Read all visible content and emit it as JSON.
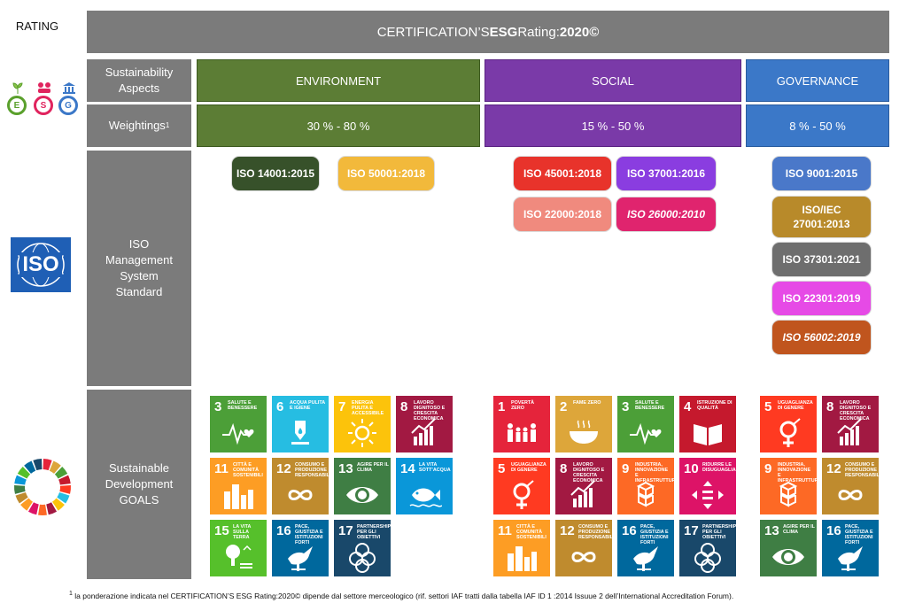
{
  "rating_label": "RATING",
  "title": {
    "prefix": "CERTIFICATION’S ",
    "bold1": "ESG",
    "middle": " Rating:",
    "bold2": "2020©"
  },
  "row_labels": {
    "aspects": [
      "Sustainability",
      "Aspects"
    ],
    "weightings": "Weightings",
    "weightings_sup": "1",
    "iso": [
      "ISO",
      "Management",
      "System",
      "Standard"
    ],
    "sdg": [
      "Sustainable",
      "Development",
      "GOALS"
    ]
  },
  "esg_icons": [
    "E",
    "S",
    "G"
  ],
  "iso_logo_text": "ISO",
  "columns": [
    {
      "name": "ENVIRONMENT",
      "weighting": "30 % - 80 %",
      "color": "#5c7d35"
    },
    {
      "name": "SOCIAL",
      "weighting": "15 %  - 50 %",
      "color": "#7a3aa8"
    },
    {
      "name": "GOVERNANCE",
      "weighting": "8 % - 50 %",
      "color": "#3b78c8"
    }
  ],
  "iso_standards": {
    "environment": [
      {
        "label": "ISO 14001:2015",
        "color": "#37512a"
      },
      {
        "label": "ISO 50001:2018",
        "color": "#f2b93b"
      }
    ],
    "social": [
      {
        "label": "ISO 45001:2018",
        "color": "#e8332b"
      },
      {
        "label": "ISO 37001:2016",
        "color": "#8a3de0"
      },
      {
        "label": "ISO 22000:2018",
        "color": "#f08a7e"
      },
      {
        "label": "ISO 26000:2010",
        "color": "#e0246e"
      }
    ],
    "governance": [
      {
        "label": "ISO 9001:2015",
        "color": "#4a78c9"
      },
      {
        "label": "ISO/IEC 27001:2013",
        "color": "#b88a2a"
      },
      {
        "label": "ISO 37301:2021",
        "color": "#6e6e6e"
      },
      {
        "label": "ISO 22301:2019",
        "color": "#e64ae6"
      },
      {
        "label": "ISO 56002:2019",
        "color": "#c0551e"
      }
    ]
  },
  "sdg_goals": {
    "environment": [
      {
        "num": "3",
        "label": "SALUTE E BENESSERE",
        "color": "#4c9f38",
        "icon": "heartbeat-icon"
      },
      {
        "num": "6",
        "label": "ACQUA PULITA E IGIENE",
        "color": "#26bde2",
        "icon": "water-drop-icon"
      },
      {
        "num": "7",
        "label": "ENERGIA PULITA E ACCESSIBILE",
        "color": "#fcc30b",
        "icon": "sun-icon"
      },
      {
        "num": "8",
        "label": "LAVORO DIGNITOSO E CRESCITA ECONOMICA",
        "color": "#a21942",
        "icon": "growth-chart-icon"
      },
      {
        "num": "11",
        "label": "CITTÀ E COMUNITÀ SOSTENIBILI",
        "color": "#fd9d24",
        "icon": "city-icon"
      },
      {
        "num": "12",
        "label": "CONSUMO E PRODUZIONE RESPONSABILI",
        "color": "#bf8b2e",
        "icon": "infinity-icon"
      },
      {
        "num": "13",
        "label": "AGIRE PER IL CLIMA",
        "color": "#3f7e44",
        "icon": "eye-globe-icon"
      },
      {
        "num": "14",
        "label": "LA VITA SOTT’ACQUA",
        "color": "#0a97d9",
        "icon": "fish-icon"
      },
      {
        "num": "15",
        "label": "LA VITA SULLA TERRA",
        "color": "#56c02b",
        "icon": "tree-icon"
      },
      {
        "num": "16",
        "label": "PACE, GIUSTIZIA E ISTITUZIONI FORTI",
        "color": "#00689d",
        "icon": "dove-icon"
      },
      {
        "num": "17",
        "label": "PARTNERSHIP PER GLI OBIETTIVI",
        "color": "#19486a",
        "icon": "rings-icon"
      }
    ],
    "social": [
      {
        "num": "1",
        "label": "POVERTÀ ZERO",
        "color": "#e5243b",
        "icon": "family-icon"
      },
      {
        "num": "2",
        "label": "FAME ZERO",
        "color": "#dda63a",
        "icon": "bowl-icon"
      },
      {
        "num": "3",
        "label": "SALUTE E BENESSERE",
        "color": "#4c9f38",
        "icon": "heartbeat-icon"
      },
      {
        "num": "4",
        "label": "ISTRUZIONE DI QUALITÀ",
        "color": "#c5192d",
        "icon": "book-icon"
      },
      {
        "num": "5",
        "label": "UGUAGLIANZA DI GENERE",
        "color": "#ff3a21",
        "icon": "gender-icon"
      },
      {
        "num": "8",
        "label": "LAVORO DIGNITOSO E CRESCITA ECONOMICA",
        "color": "#a21942",
        "icon": "growth-chart-icon"
      },
      {
        "num": "9",
        "label": "INDUSTRIA, INNOVAZIONE E INFRASTRUTTURE",
        "color": "#fd6925",
        "icon": "cubes-icon"
      },
      {
        "num": "10",
        "label": "RIDURRE LE DISUGUAGLIANZE",
        "color": "#dd1367",
        "icon": "equality-icon"
      },
      {
        "num": "11",
        "label": "CITTÀ E COMUNITÀ SOSTENIBILI",
        "color": "#fd9d24",
        "icon": "city-icon"
      },
      {
        "num": "12",
        "label": "CONSUMO E PRODUZIONE RESPONSABILI",
        "color": "#bf8b2e",
        "icon": "infinity-icon"
      },
      {
        "num": "16",
        "label": "PACE, GIUSTIZIA E ISTITUZIONI FORTI",
        "color": "#00689d",
        "icon": "dove-icon"
      },
      {
        "num": "17",
        "label": "PARTNERSHIP PER GLI OBIETTIVI",
        "color": "#19486a",
        "icon": "rings-icon"
      }
    ],
    "governance": [
      {
        "num": "5",
        "label": "UGUAGLIANZA DI GENERE",
        "color": "#ff3a21",
        "icon": "gender-icon"
      },
      {
        "num": "8",
        "label": "LAVORO DIGNITOSO E CRESCITA ECONOMICA",
        "color": "#a21942",
        "icon": "growth-chart-icon"
      },
      {
        "num": "9",
        "label": "INDUSTRIA, INNOVAZIONE E INFRASTRUTTURE",
        "color": "#fd6925",
        "icon": "cubes-icon"
      },
      {
        "num": "12",
        "label": "CONSUMO E PRODUZIONE RESPONSABILI",
        "color": "#bf8b2e",
        "icon": "infinity-icon"
      },
      {
        "num": "13",
        "label": "AGIRE PER IL CLIMA",
        "color": "#3f7e44",
        "icon": "eye-globe-icon"
      },
      {
        "num": "16",
        "label": "PACE, GIUSTIZIA E ISTITUZIONI FORTI",
        "color": "#00689d",
        "icon": "dove-icon"
      }
    ]
  },
  "footnote": {
    "sup": "1",
    "text": " la ponderazione indicata nel CERTIFICATION’S ESG Rating:2020© dipende dal settore merceologico (rif. settori IAF tratti dalla tabella IAF ID 1 :2014 Issuue 2 dell’International Accreditation Forum)."
  }
}
